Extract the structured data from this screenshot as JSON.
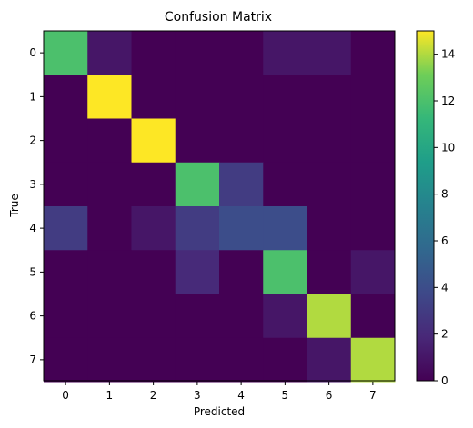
{
  "chart_data": {
    "type": "heatmap",
    "title": "Confusion Matrix",
    "xlabel": "Predicted",
    "ylabel": "True",
    "x_categories": [
      "0",
      "1",
      "2",
      "3",
      "4",
      "5",
      "6",
      "7"
    ],
    "y_categories": [
      "0",
      "1",
      "2",
      "3",
      "4",
      "5",
      "6",
      "7"
    ],
    "values": [
      [
        12,
        1,
        0,
        0,
        0,
        1,
        1,
        0
      ],
      [
        0,
        15,
        0,
        0,
        0,
        0,
        0,
        0
      ],
      [
        0,
        0,
        15,
        0,
        0,
        0,
        0,
        0
      ],
      [
        0,
        0,
        0,
        12,
        3,
        0,
        0,
        0
      ],
      [
        3,
        0,
        1,
        3,
        4,
        4,
        0,
        0
      ],
      [
        0,
        0,
        0,
        2,
        0,
        12,
        0,
        1
      ],
      [
        0,
        0,
        0,
        0,
        0,
        1,
        14,
        0
      ],
      [
        0,
        0,
        0,
        0,
        0,
        0,
        1,
        14
      ]
    ],
    "colormap": "viridis",
    "vmin": 0,
    "vmax": 15,
    "colorbar_ticks": [
      "0",
      "2",
      "4",
      "6",
      "8",
      "10",
      "12",
      "14"
    ]
  }
}
